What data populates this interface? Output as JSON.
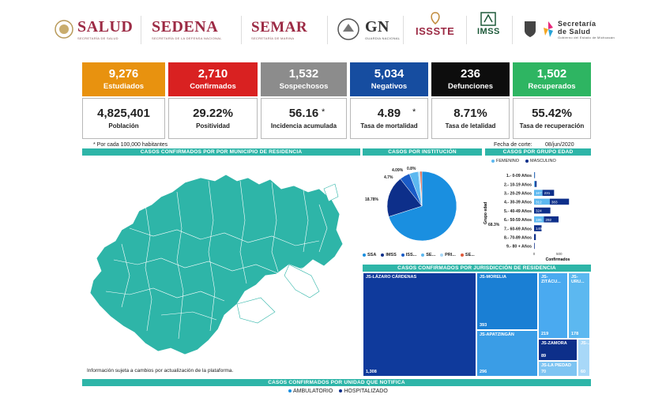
{
  "logos": {
    "salud": {
      "name": "SALUD",
      "sub": "SECRETARÍA DE SALUD"
    },
    "sedena": {
      "name": "SEDENA",
      "sub": "SECRETARÍA DE LA DEFENSA NACIONAL"
    },
    "semar": {
      "name": "SEMAR",
      "sub": "SECRETARÍA DE MARINA"
    },
    "gn": {
      "name": "GN",
      "sub": "GUARDIA NACIONAL"
    },
    "issste": {
      "name": "ISSSTE"
    },
    "imss": {
      "name": "IMSS"
    },
    "secsalud": {
      "name": "Secretaría de Salud",
      "sub": "Gobierno del Estado de Michoacán"
    }
  },
  "kpis": [
    {
      "value": "9,276",
      "label": "Estudiados",
      "color": "#e8920f"
    },
    {
      "value": "2,710",
      "label": "Confirmados",
      "color": "#d92121"
    },
    {
      "value": "1,532",
      "label": "Sospechosos",
      "color": "#8c8c8c"
    },
    {
      "value": "5,034",
      "label": "Negativos",
      "color": "#164da0"
    },
    {
      "value": "236",
      "label": "Defunciones",
      "color": "#0d0d0d"
    },
    {
      "value": "1,502",
      "label": "Recuperados",
      "color": "#2eb562"
    }
  ],
  "stats": [
    {
      "value": "4,825,401",
      "label": "Población"
    },
    {
      "value": "29.22%",
      "label": "Positividad"
    },
    {
      "value": "56.16",
      "label": "Incidencia acumulada",
      "star": "*"
    },
    {
      "value": "4.89",
      "label": "Tasa de mortalidad",
      "star": "*"
    },
    {
      "value": "8.71%",
      "label": "Tasa de letalidad"
    },
    {
      "value": "55.42%",
      "label": "Tasa de recuperación"
    }
  ],
  "notes": {
    "per100k": "* Por cada 100,000 habitantes",
    "cutoff_label": "Fecha de corte:",
    "cutoff_date": "08/jun/2020",
    "map_disclaimer": "Información sujeta a cambios por actualización de la plataforma."
  },
  "sections": {
    "map": "CASOS CONFIRMADOS POR POR MUNICIPIO DE RESIDENCIA",
    "institution": "CASOS POR INSTITUCIÓN",
    "age": "CASOS POR GRUPO EDAD",
    "jurisdiction": "CASOS CONFIRMADOS POR JURISDICCIÓN DE RESIDENCIA",
    "unit": "CASOS CONFIRMADOS POR UNIDAD QUE NOTIFICA"
  },
  "colors": {
    "teal": "#2eb5a8",
    "map_fill": "#2eb5a8"
  },
  "chart_data": [
    {
      "type": "pie",
      "title": "CASOS POR INSTITUCIÓN",
      "categories": [
        "SSA",
        "IMSS",
        "ISS...",
        "SE...",
        "PRI...",
        "SE..."
      ],
      "values": [
        68.3,
        18.78,
        4.7,
        4.09,
        0.8,
        0.8
      ],
      "slice_labels": [
        "68.3%",
        "18.78%",
        "4.7%",
        "4.09%",
        "0.8%",
        ""
      ],
      "colors": [
        "#1a8fe0",
        "#0d2f8a",
        "#1a5cc7",
        "#5cb8f0",
        "#a8d8f8",
        "#e05a3a"
      ]
    },
    {
      "type": "bar",
      "title": "CASOS POR GRUPO EDAD",
      "categories": [
        "1.- 0-09 Años",
        "2.- 10-19 Años",
        "3.- 20-29 Años",
        "4.- 30-39 Años",
        "5.- 40-49 Años",
        "6.- 50-59 Años",
        "7.- 60-69 Años",
        "8.- 70-89 Años",
        "9.- 80 + Años"
      ],
      "series": [
        {
          "name": "FEMENINO",
          "values": [
            8,
            20,
            167,
            312,
            0,
            195,
            0,
            0,
            0
          ]
        },
        {
          "name": "MASCULINO",
          "values": [
            10,
            30,
            231,
            383,
            324,
            292,
            149,
            35,
            12
          ]
        }
      ],
      "data_labels_femenino": [
        "",
        "",
        "167",
        "312",
        "",
        "195",
        "",
        "",
        ""
      ],
      "data_labels_masculino": [
        "",
        "",
        "231",
        "383",
        "324",
        "292",
        "149",
        "",
        ""
      ],
      "xlabel": "Confirmados",
      "ylabel": "Grupo edad",
      "xticks": [
        "0",
        "500"
      ],
      "colors": [
        "#5cb8f0",
        "#0d2f8a"
      ]
    },
    {
      "type": "treemap",
      "title": "CASOS CONFIRMADOS POR JURISDICCIÓN DE RESIDENCIA",
      "categories": [
        "JS-LÁZARO CÁRDENAS",
        "JS-MORELIA",
        "JS-APATZINGÁN",
        "JS-ZITÁCU...",
        "JS-URU...",
        "JS-ZAMORA",
        "JS-LA PIEDAD",
        "JS-..."
      ],
      "values": [
        1308,
        393,
        296,
        219,
        178,
        89,
        70,
        60
      ],
      "value_labels": [
        "1,308",
        "393",
        "296",
        "219",
        "178",
        "89",
        "70",
        "60"
      ]
    }
  ],
  "unit_legend": [
    {
      "label": "AMBULATORIO",
      "color": "#1a8fe0"
    },
    {
      "label": "HOSPITALIZADO",
      "color": "#0d2f8a"
    }
  ]
}
